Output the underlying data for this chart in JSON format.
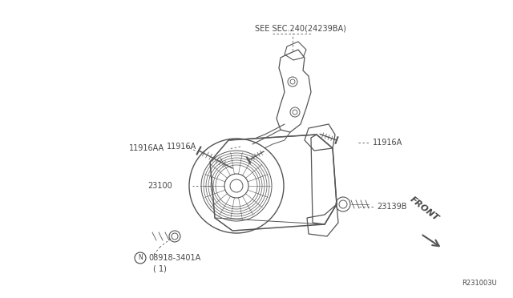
{
  "bg_color": "#ffffff",
  "line_color": "#555555",
  "text_color": "#444444",
  "fig_width": 6.4,
  "fig_height": 3.72,
  "dpi": 100,
  "labels": {
    "see_sec": "SEE SEC.240(24239BA)",
    "11916A_right": "11916A",
    "11916A_left": "11916A",
    "11916AA": "11916AA",
    "23100": "23100",
    "23139B": "23139B",
    "front": "FRONT",
    "ref": "R231003U"
  }
}
